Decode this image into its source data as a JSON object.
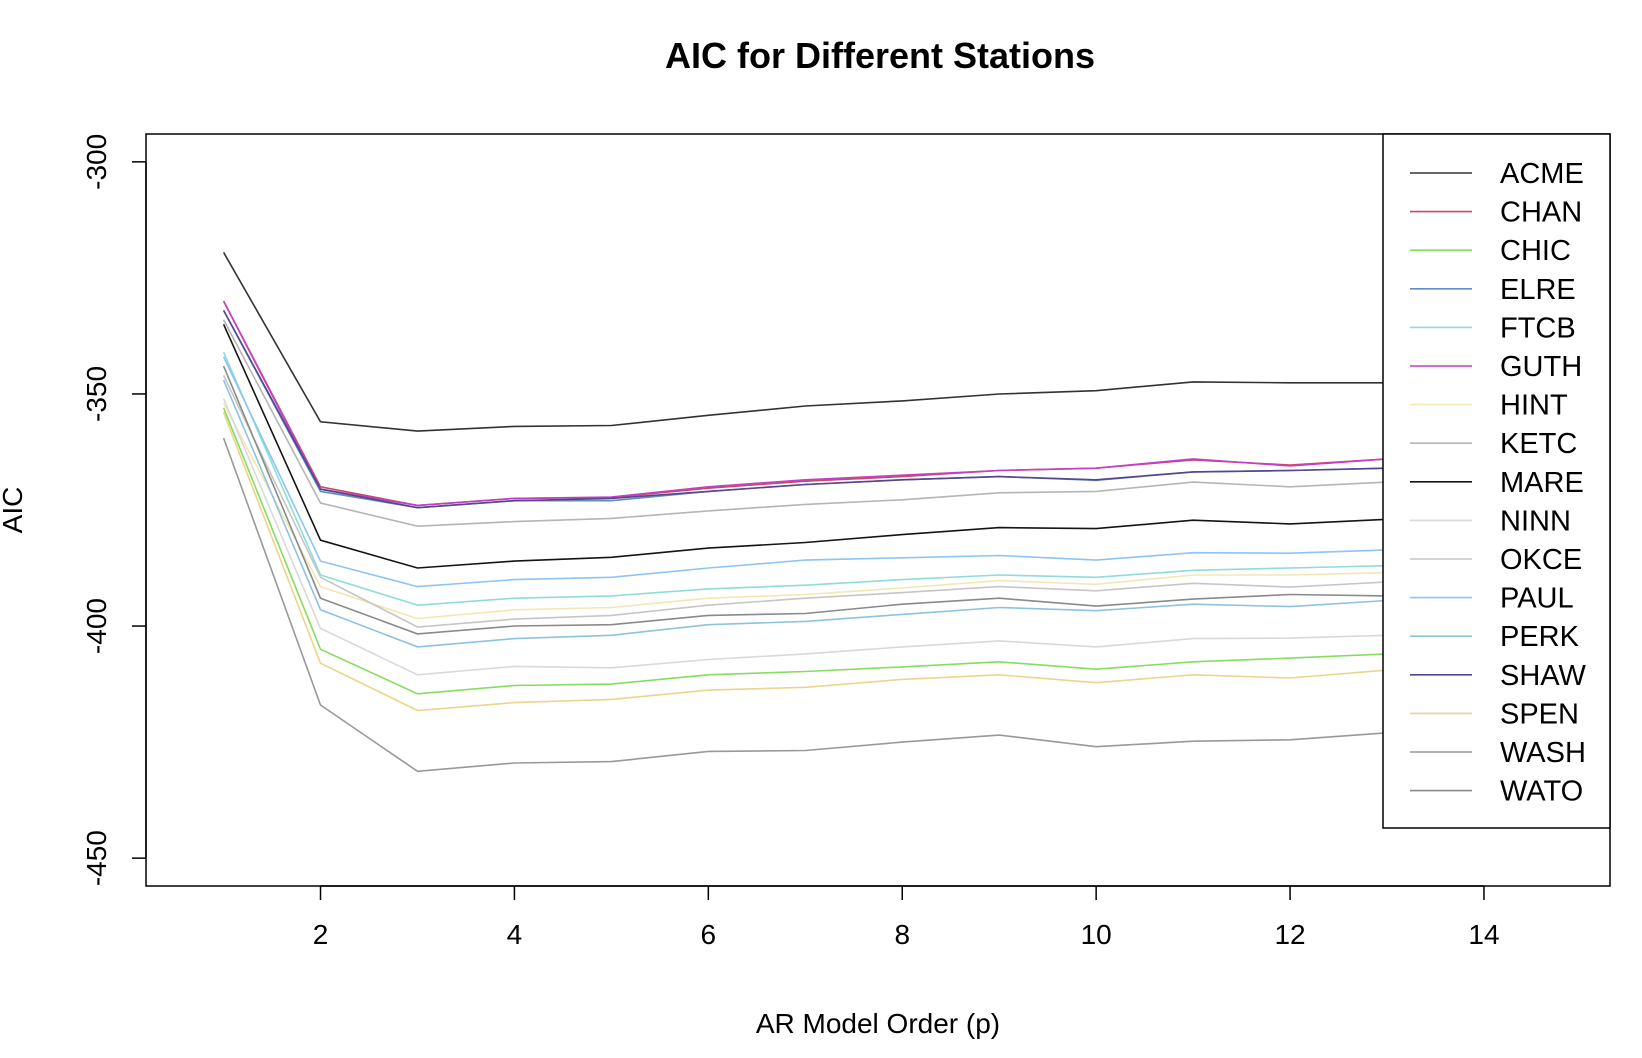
{
  "chart_data": {
    "type": "line",
    "title": "AIC for Different Stations",
    "xlabel": "AR Model Order (p)",
    "ylabel": "AIC",
    "xlim": [
      0.2,
      15.3
    ],
    "ylim": [
      -456,
      -294
    ],
    "x_ticks": [
      2,
      4,
      6,
      8,
      10,
      12,
      14
    ],
    "y_ticks": [
      -450,
      -400,
      -350,
      -300
    ],
    "x": [
      1,
      2,
      3,
      4,
      5,
      6,
      7,
      8,
      9,
      10,
      11,
      12,
      13,
      14,
      15
    ],
    "legend_position": "top-right",
    "grid": false,
    "series": [
      {
        "name": "ACME",
        "color": "#333333",
        "values": [
          -319.5,
          -356,
          -358,
          -357,
          -356.8,
          -354.6,
          -352.6,
          -351.5,
          -350,
          -349.3,
          -347.4,
          -347.6,
          -347.6,
          -346.8,
          -346
        ]
      },
      {
        "name": "CHAN",
        "color": "#c94a64",
        "values": [
          -330,
          -370,
          -374,
          -372.5,
          -372.3,
          -370.3,
          -368.8,
          -367.8,
          -366.5,
          -366,
          -364.2,
          -365.3,
          -364,
          -363,
          -362
        ]
      },
      {
        "name": "CHIC",
        "color": "#86dd5d",
        "values": [
          -353,
          -405,
          -414.6,
          -412.8,
          -412.5,
          -410.5,
          -409.8,
          -408.8,
          -407.7,
          -409.3,
          -407.7,
          -406.9,
          -406,
          -405,
          -404
        ]
      },
      {
        "name": "ELRE",
        "color": "#5b8fc5",
        "values": [
          -332,
          -371,
          -374.5,
          -373,
          -373,
          -371,
          -369.5,
          -368.5,
          -367.8,
          -368.6,
          -366.8,
          -366.5,
          -366,
          -365,
          -364
        ]
      },
      {
        "name": "FTCB",
        "color": "#8fdcd9",
        "values": [
          -341,
          -389,
          -395.5,
          -394,
          -393.5,
          -392,
          -391.2,
          -390,
          -389,
          -389.5,
          -388,
          -387.5,
          -387,
          -386,
          -385
        ]
      },
      {
        "name": "GUTH",
        "color": "#c33fc7",
        "values": [
          -330,
          -370.5,
          -374,
          -372.5,
          -372.2,
          -370,
          -368.5,
          -367.5,
          -366.5,
          -366,
          -364,
          -365.5,
          -364,
          -363,
          -362
        ]
      },
      {
        "name": "HINT",
        "color": "#f2e7b3",
        "values": [
          -352,
          -391.5,
          -398.4,
          -396.5,
          -396,
          -394,
          -393.2,
          -391.8,
          -390.2,
          -391,
          -389,
          -389,
          -388.5,
          -387.5,
          -386.5
        ]
      },
      {
        "name": "KETC",
        "color": "#b5b5b5",
        "values": [
          -334,
          -373.5,
          -378.5,
          -377.5,
          -376.8,
          -375.2,
          -373.8,
          -372.8,
          -371.3,
          -371,
          -369,
          -370,
          -369,
          -368,
          -367
        ]
      },
      {
        "name": "MARE",
        "color": "#141414",
        "values": [
          -335,
          -381.5,
          -387.5,
          -386,
          -385.2,
          -383.2,
          -382,
          -380.3,
          -378.8,
          -379,
          -377.2,
          -378,
          -377,
          -376,
          -375
        ]
      },
      {
        "name": "NINN",
        "color": "#d9d9d9",
        "values": [
          -351,
          -400.5,
          -410.5,
          -408.7,
          -409,
          -407.2,
          -406,
          -404.5,
          -403.2,
          -404.5,
          -402.7,
          -402.6,
          -402,
          -401,
          -400
        ]
      },
      {
        "name": "OKCE",
        "color": "#c6c6c6",
        "values": [
          -346,
          -389.5,
          -400.2,
          -398.5,
          -397.7,
          -395.5,
          -394,
          -392.8,
          -391.5,
          -392.4,
          -390.8,
          -391.6,
          -390.5,
          -389.5,
          -388.5
        ]
      },
      {
        "name": "PAUL",
        "color": "#8cc4f5",
        "values": [
          -342,
          -386,
          -391.5,
          -390,
          -389.5,
          -387.5,
          -385.8,
          -385.3,
          -384.8,
          -385.8,
          -384.2,
          -384.3,
          -383.6,
          -382.6,
          -381.6
        ]
      },
      {
        "name": "PERK",
        "color": "#8bc3e0",
        "values": [
          -347,
          -396.5,
          -404.5,
          -402.7,
          -402,
          -399.7,
          -399,
          -397.5,
          -396,
          -396.7,
          -395.3,
          -395.8,
          -394.5,
          -393.5,
          -392.5
        ]
      },
      {
        "name": "SHAW",
        "color": "#56468e",
        "values": [
          -332,
          -370.5,
          -374.5,
          -373,
          -372.5,
          -371,
          -369.5,
          -368.5,
          -367.8,
          -368.5,
          -366.8,
          -366.5,
          -366,
          -365,
          -364
        ]
      },
      {
        "name": "SPEN",
        "color": "#ecd48d",
        "values": [
          -354,
          -408,
          -418.2,
          -416.5,
          -415.8,
          -413.8,
          -413.2,
          -411.5,
          -410.5,
          -412.2,
          -410.5,
          -411.2,
          -409.5,
          -408.5,
          -407.5
        ]
      },
      {
        "name": "WASH",
        "color": "#999999",
        "values": [
          -359.5,
          -417,
          -431.3,
          -429.5,
          -429.2,
          -427,
          -426.8,
          -425,
          -423.5,
          -426,
          -424.8,
          -424.5,
          -423,
          -422,
          -421
        ]
      },
      {
        "name": "WATO",
        "color": "#8a8a8a",
        "values": [
          -344,
          -394,
          -401.7,
          -400,
          -399.7,
          -397.7,
          -397.3,
          -395.3,
          -394,
          -395.7,
          -394.2,
          -393.2,
          -393.5,
          -392.5,
          -391.5
        ]
      }
    ]
  }
}
